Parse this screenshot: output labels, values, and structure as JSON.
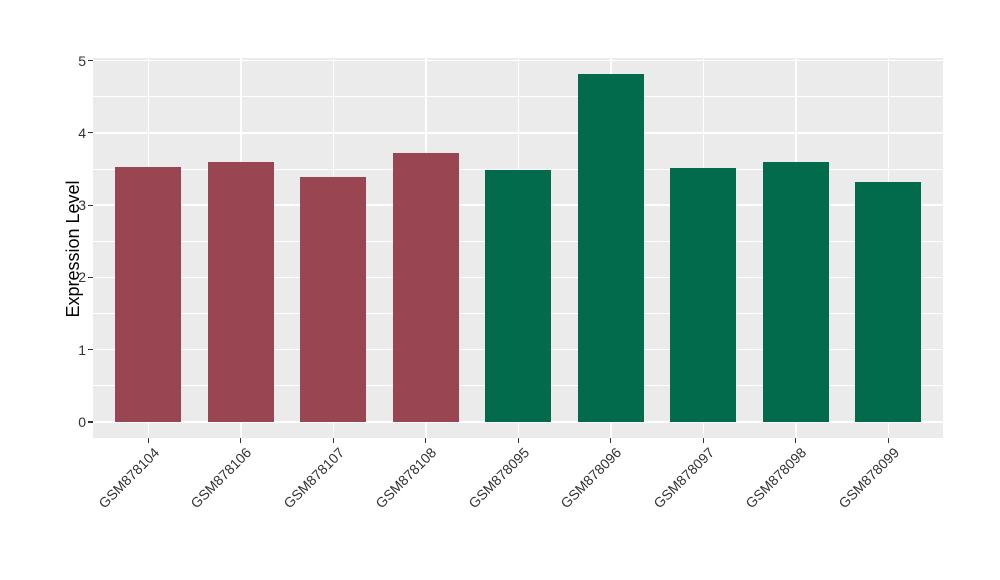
{
  "chart_data": {
    "type": "bar",
    "title": "",
    "xlabel": "",
    "ylabel": "Expression Level",
    "ylim": [
      0,
      5
    ],
    "yticks": [
      0,
      1,
      2,
      3,
      4,
      5
    ],
    "grid": "major and minor horizontal white lines, major vertical white lines at category centers, gray panel",
    "legend_position": "none",
    "categories": [
      "GSM878104",
      "GSM878106",
      "GSM878107",
      "GSM878108",
      "GSM878095",
      "GSM878096",
      "GSM878097",
      "GSM878098",
      "GSM878099"
    ],
    "values": [
      3.53,
      3.59,
      3.39,
      3.72,
      3.48,
      4.81,
      3.52,
      3.59,
      3.32
    ],
    "groups": [
      "group1",
      "group1",
      "group1",
      "group1",
      "group2",
      "group2",
      "group2",
      "group2",
      "group2"
    ],
    "group_colors": {
      "group1": "#9A4552",
      "group2": "#016B4C"
    },
    "colors": {
      "panel_background": "#EBEBEB",
      "figure_background": "#FFFFFF",
      "gridline": "#FFFFFF",
      "tick_text": "#333333",
      "axis_title_text": "#000000"
    }
  }
}
